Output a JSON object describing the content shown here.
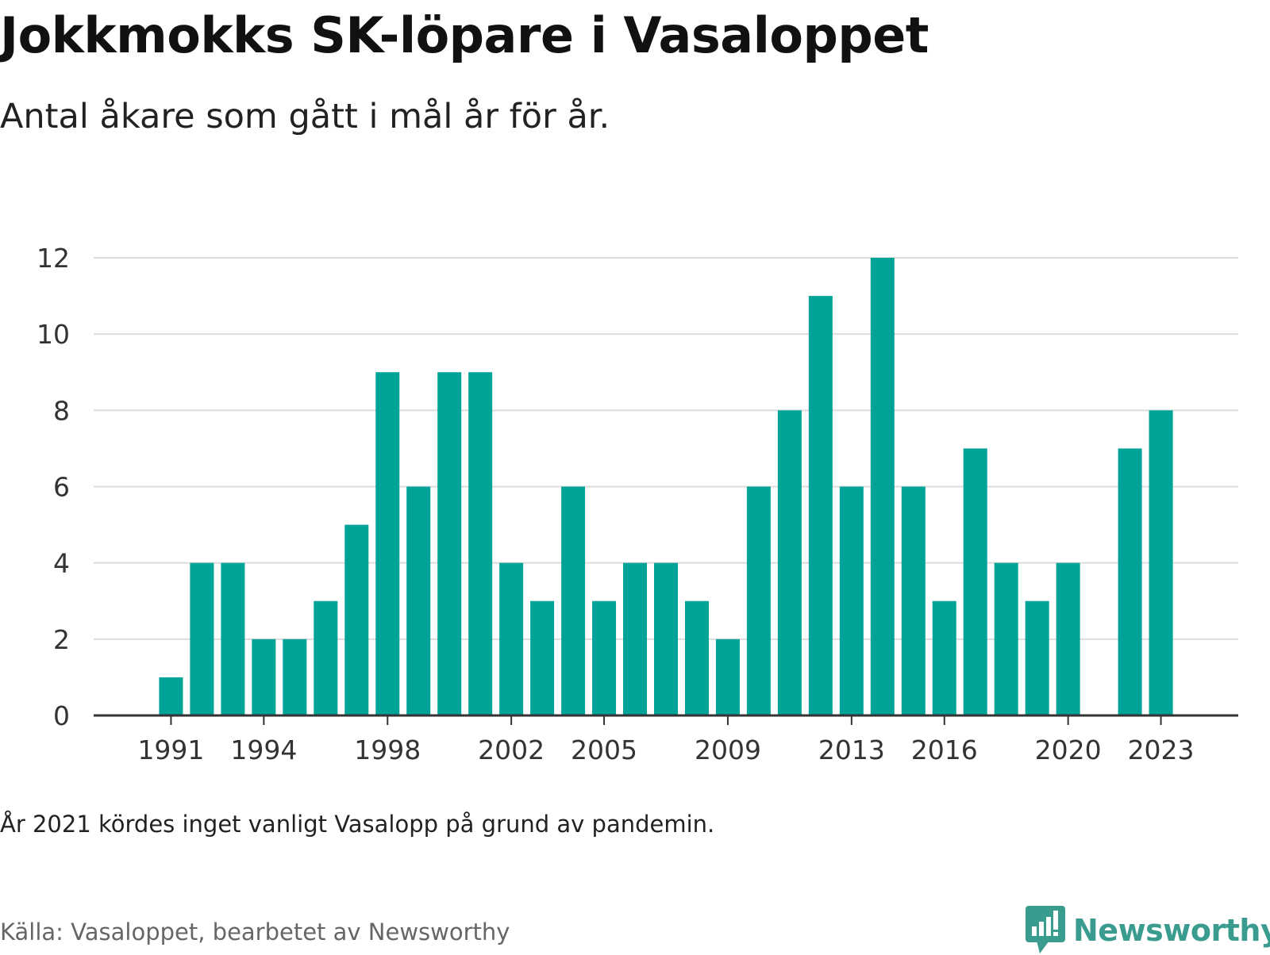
{
  "title": "Jokkmokks SK-löpare i Vasaloppet",
  "subtitle": "Antal åkare som gått i mål år för år.",
  "note": "År 2021 kördes inget vanligt Vasalopp på grund av pandemin.",
  "source": "Källa: Vasaloppet, bearbetet av Newsworthy",
  "brand": {
    "name": "Newsworthy",
    "color": "#3a9c8e"
  },
  "colors": {
    "bar": "#00a398",
    "grid": "#dcdcdc",
    "axis": "#333333"
  },
  "chart_data": {
    "type": "bar",
    "x": [
      1991,
      1992,
      1993,
      1994,
      1995,
      1996,
      1997,
      1998,
      1999,
      2000,
      2001,
      2002,
      2003,
      2004,
      2005,
      2006,
      2007,
      2008,
      2009,
      2010,
      2011,
      2012,
      2013,
      2014,
      2015,
      2016,
      2017,
      2018,
      2019,
      2020,
      2021,
      2022,
      2023
    ],
    "values": [
      1,
      4,
      4,
      2,
      2,
      3,
      5,
      9,
      6,
      9,
      9,
      4,
      3,
      6,
      3,
      4,
      4,
      3,
      2,
      6,
      8,
      11,
      6,
      12,
      6,
      3,
      7,
      4,
      3,
      4,
      null,
      7,
      8
    ],
    "x_ticks": [
      "1991",
      "1994",
      "1998",
      "2002",
      "2005",
      "2009",
      "2013",
      "2016",
      "2020",
      "2023"
    ],
    "y_ticks": [
      "0",
      "2",
      "4",
      "6",
      "8",
      "10",
      "12"
    ],
    "ylim": [
      0,
      12
    ],
    "xlim": [
      1988.5,
      2025.5
    ],
    "grid": true,
    "xlabel": "",
    "ylabel": ""
  }
}
